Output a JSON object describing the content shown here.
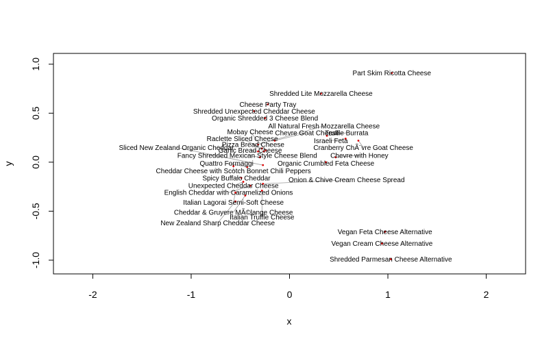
{
  "chart_data": {
    "type": "scatter",
    "title": "",
    "xlabel": "x",
    "ylabel": "y",
    "xlim": [
      -2.4,
      2.4
    ],
    "ylim": [
      -1.14,
      1.11
    ],
    "x_ticks": [
      -2,
      -1,
      0,
      1,
      2
    ],
    "y_ticks": [
      -1.0,
      -0.5,
      0.0,
      0.5,
      1.0
    ],
    "x_tick_labels": [
      "-2",
      "-1",
      "0",
      "1",
      "2"
    ],
    "y_tick_labels": [
      "-1.0",
      "-0.5",
      "0.0",
      "0.5",
      "1.0"
    ],
    "point_color": "#dd0000",
    "leader_color": "#999999",
    "points": [
      {
        "label": "Part Skim Ricotta Cheese",
        "x": 1.04,
        "y": 0.91,
        "lx": 1.04,
        "ly": 0.91
      },
      {
        "label": "Shredded Lite Mozzarella Cheese",
        "x": 0.32,
        "y": 0.7,
        "lx": 0.32,
        "ly": 0.7
      },
      {
        "label": "Cheese Party Tray",
        "x": -0.22,
        "y": 0.59,
        "lx": -0.22,
        "ly": 0.59
      },
      {
        "label": "Shredded Unexpected Cheddar Cheese",
        "x": -0.36,
        "y": 0.52,
        "lx": -0.36,
        "ly": 0.52
      },
      {
        "label": "Organic Shredded 3 Cheese Blend",
        "x": -0.25,
        "y": 0.45,
        "lx": -0.25,
        "ly": 0.45
      },
      {
        "label": "All Natural Fresh Mozzarella Cheese",
        "x": -0.32,
        "y": 0.18,
        "lx": 0.35,
        "ly": 0.37
      },
      {
        "label": "Mobay Cheese",
        "x": -0.24,
        "y": 0.12,
        "lx": -0.4,
        "ly": 0.31
      },
      {
        "label": "Chevre Goat Cheese",
        "x": -0.15,
        "y": 0.22,
        "lx": 0.18,
        "ly": 0.3
      },
      {
        "label": "Truffle Burrata",
        "x": 0.38,
        "y": 0.27,
        "lx": 0.58,
        "ly": 0.3
      },
      {
        "label": "Raclette Sliced Cheese",
        "x": -0.28,
        "y": 0.14,
        "lx": -0.48,
        "ly": 0.24
      },
      {
        "label": "Israeli Feta",
        "x": 0.57,
        "y": 0.24,
        "lx": 0.42,
        "ly": 0.22
      },
      {
        "label": "Pizza Bread Cheese",
        "x": -0.26,
        "y": 0.11,
        "lx": -0.37,
        "ly": 0.18
      },
      {
        "label": "Sliced New Zealand Organic Cheddar",
        "x": -0.27,
        "y": -0.03,
        "lx": -1.15,
        "ly": 0.15
      },
      {
        "label": "Cranberry ChÃ¨vre Goat Cheese",
        "x": 0.7,
        "y": 0.22,
        "lx": 0.75,
        "ly": 0.15
      },
      {
        "label": "Garlic Bread Cheese",
        "x": -0.32,
        "y": 0.11,
        "lx": -0.4,
        "ly": 0.12
      },
      {
        "label": "Fancy Shredded Mexican Style Cheese Blend",
        "x": -0.3,
        "y": 0.05,
        "lx": -0.43,
        "ly": 0.07
      },
      {
        "label": "Chevre with Honey",
        "x": 0.47,
        "y": 0.05,
        "lx": 0.71,
        "ly": 0.07
      },
      {
        "label": "Quattro Formaggi",
        "x": -0.43,
        "y": -0.05,
        "lx": -0.64,
        "ly": -0.01
      },
      {
        "label": "Organic Crumbled Feta Cheese",
        "x": 0.37,
        "y": 0.0,
        "lx": 0.37,
        "ly": -0.01
      },
      {
        "label": "Cheddar Cheese with Scotch Bonnet Chili Peppers",
        "x": -0.57,
        "y": -0.04,
        "lx": -0.57,
        "ly": -0.09
      },
      {
        "label": "Spicy Buffalo Cheddar",
        "x": -0.49,
        "y": -0.16,
        "lx": -0.54,
        "ly": -0.16
      },
      {
        "label": "Onion & Chive Cream Cheese Spread",
        "x": -0.27,
        "y": -0.22,
        "lx": 0.58,
        "ly": -0.18
      },
      {
        "label": "Unexpected Cheddar Cheese",
        "x": -0.47,
        "y": -0.2,
        "lx": -0.57,
        "ly": -0.24
      },
      {
        "label": "English Cheddar with Caramelized Onions",
        "x": -0.4,
        "y": -0.24,
        "lx": -0.62,
        "ly": -0.31
      },
      {
        "label": "Italian Lagorai Semi-Soft Cheese",
        "x": -0.55,
        "y": -0.31,
        "lx": -0.57,
        "ly": -0.41
      },
      {
        "label": "Cheddar & Gruyere MÃ©lange Cheese",
        "x": -0.45,
        "y": -0.34,
        "lx": -0.57,
        "ly": -0.51
      },
      {
        "label": "Italian Truffle Cheese",
        "x": -0.28,
        "y": -0.29,
        "lx": -0.28,
        "ly": -0.56
      },
      {
        "label": "New Zealand Sharp Cheddar Cheese",
        "x": -0.55,
        "y": -0.4,
        "lx": -0.73,
        "ly": -0.62
      },
      {
        "label": "Vegan Feta Cheese Alternative",
        "x": 0.97,
        "y": -0.71,
        "lx": 0.97,
        "ly": -0.71
      },
      {
        "label": "Vegan Cream Cheese Alternative",
        "x": 0.94,
        "y": -0.83,
        "lx": 0.94,
        "ly": -0.83
      },
      {
        "label": "Shredded Parmesan Cheese Alternative",
        "x": 1.03,
        "y": -0.99,
        "lx": 1.03,
        "ly": -0.99
      }
    ]
  }
}
